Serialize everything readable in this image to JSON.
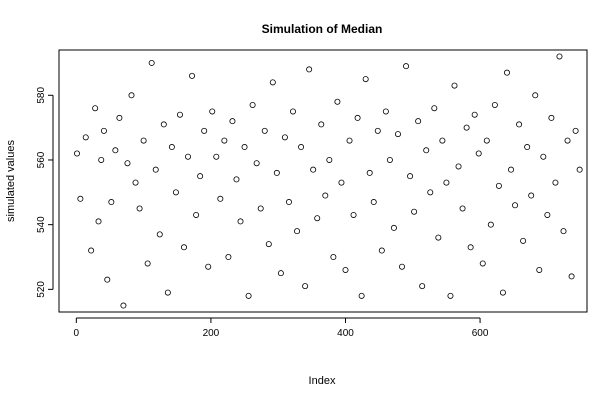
{
  "chart_data": {
    "type": "scatter",
    "title": "Simulation of Median",
    "xlabel": "Index",
    "ylabel": "simulated values",
    "xlim": [
      1,
      750
    ],
    "ylim": [
      513,
      594
    ],
    "x_ticks": [
      0,
      200,
      400,
      600
    ],
    "y_ticks": [
      520,
      540,
      560,
      580
    ],
    "grid": false,
    "marker": "open-circle",
    "series": [
      {
        "x": [
          1,
          6,
          14,
          22,
          28,
          33,
          37,
          41,
          46,
          52,
          58,
          64,
          70,
          76,
          82,
          88,
          94,
          100,
          106,
          112,
          118,
          124,
          130,
          136,
          142,
          148,
          154,
          160,
          166,
          172,
          178,
          184,
          190,
          196,
          202,
          208,
          214,
          220,
          226,
          232,
          238,
          244,
          250,
          256,
          262,
          268,
          274,
          280,
          286,
          292,
          298,
          304,
          310,
          316,
          322,
          328,
          334,
          340,
          346,
          352,
          358,
          364,
          370,
          376,
          382,
          388,
          394,
          400,
          406,
          412,
          418,
          424,
          430,
          436,
          442,
          448,
          454,
          460,
          466,
          472,
          478,
          484,
          490,
          496,
          502,
          508,
          514,
          520,
          526,
          532,
          538,
          544,
          550,
          556,
          562,
          568,
          574,
          580,
          586,
          592,
          598,
          604,
          610,
          616,
          622,
          628,
          634,
          640,
          646,
          652,
          658,
          664,
          670,
          676,
          682,
          688,
          694,
          700,
          706,
          712,
          718,
          724,
          730,
          736,
          742,
          748
        ],
        "y": [
          562,
          548,
          567,
          532,
          576,
          541,
          560,
          569,
          523,
          547,
          563,
          573,
          515,
          559,
          580,
          553,
          545,
          566,
          528,
          590,
          557,
          537,
          571,
          519,
          564,
          550,
          574,
          533,
          561,
          586,
          543,
          555,
          569,
          527,
          575,
          561,
          548,
          566,
          530,
          572,
          554,
          541,
          564,
          518,
          577,
          559,
          545,
          569,
          534,
          584,
          556,
          525,
          567,
          547,
          575,
          538,
          564,
          521,
          588,
          557,
          542,
          571,
          549,
          560,
          530,
          578,
          553,
          526,
          566,
          543,
          573,
          518,
          585,
          556,
          547,
          569,
          532,
          575,
          560,
          539,
          568,
          527,
          589,
          555,
          544,
          572,
          521,
          563,
          550,
          576,
          536,
          566,
          553,
          518,
          583,
          558,
          545,
          570,
          533,
          574,
          562,
          528,
          566,
          540,
          577,
          552,
          519,
          587,
          557,
          546,
          571,
          535,
          564,
          549,
          580,
          526,
          561,
          543,
          573,
          553,
          592,
          538,
          566,
          524,
          569,
          557
        ]
      }
    ]
  }
}
